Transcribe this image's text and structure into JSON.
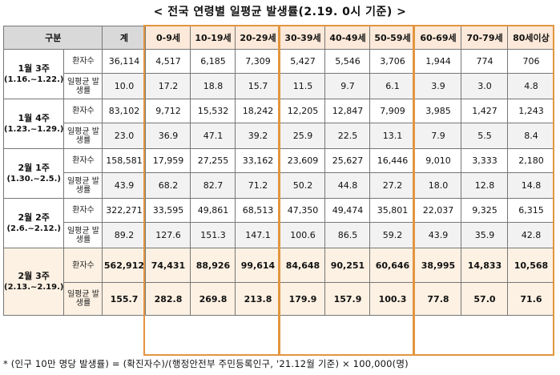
{
  "title": "< 전국 연령별 일평균 발생률(2.19. 0시 기준) >",
  "header": {
    "group": "구분",
    "total": "계",
    "ages": [
      "0-9세",
      "10-19세",
      "20-29세",
      "30-39세",
      "40-49세",
      "50-59세",
      "60-69세",
      "70-79세",
      "80세이상"
    ]
  },
  "row_labels": {
    "count": "환자수",
    "rate": "일평균 발생률"
  },
  "periods": [
    {
      "week": "1월 3주",
      "range": "(1.16.~1.22.)",
      "count": [
        "36,114",
        "4,517",
        "6,185",
        "7,309",
        "5,427",
        "5,546",
        "3,706",
        "1,944",
        "774",
        "706"
      ],
      "rate": [
        "10.0",
        "17.2",
        "18.8",
        "15.7",
        "11.5",
        "9.7",
        "6.1",
        "3.9",
        "3.0",
        "4.8"
      ]
    },
    {
      "week": "1월 4주",
      "range": "(1.23.~1.29.)",
      "count": [
        "83,102",
        "9,712",
        "15,532",
        "18,242",
        "12,205",
        "12,847",
        "7,909",
        "3,985",
        "1,427",
        "1,243"
      ],
      "rate": [
        "23.0",
        "36.9",
        "47.1",
        "39.2",
        "25.9",
        "22.5",
        "13.1",
        "7.9",
        "5.5",
        "8.4"
      ]
    },
    {
      "week": "2월 1주",
      "range": "(1.30.~2.5.)",
      "count": [
        "158,581",
        "17,959",
        "27,255",
        "33,162",
        "23,609",
        "25,627",
        "16,446",
        "9,010",
        "3,333",
        "2,180"
      ],
      "rate": [
        "43.9",
        "68.2",
        "82.7",
        "71.2",
        "50.2",
        "44.8",
        "27.2",
        "18.0",
        "12.8",
        "14.8"
      ]
    },
    {
      "week": "2월 2주",
      "range": "(2.6.~2.12.)",
      "count": [
        "322,271",
        "33,595",
        "49,861",
        "68,513",
        "47,350",
        "49,474",
        "35,801",
        "22,037",
        "9,325",
        "6,315"
      ],
      "rate": [
        "89.2",
        "127.6",
        "151.3",
        "147.1",
        "100.6",
        "86.5",
        "59.2",
        "43.9",
        "35.9",
        "42.8"
      ]
    },
    {
      "week": "2월 3주",
      "range": "(2.13.~2.19.)",
      "count": [
        "562,912",
        "74,431",
        "88,926",
        "99,614",
        "84,648",
        "90,251",
        "60,646",
        "38,995",
        "14,833",
        "10,568"
      ],
      "rate": [
        "155.7",
        "282.8",
        "269.8",
        "213.8",
        "179.9",
        "157.9",
        "100.3",
        "77.8",
        "57.0",
        "71.6"
      ]
    }
  ],
  "footnote": "* (인구 10만 명당 발생률) = (확진자수)/(행정안전부 주민등록인구, '21.12월 기준) × 100,000(명)",
  "colors": {
    "header_bg": "#d9d9d9",
    "age_header_bg": "#fde9d9",
    "highlight_border": "#e2953f",
    "last_row_bg": "#fdf1e3"
  }
}
